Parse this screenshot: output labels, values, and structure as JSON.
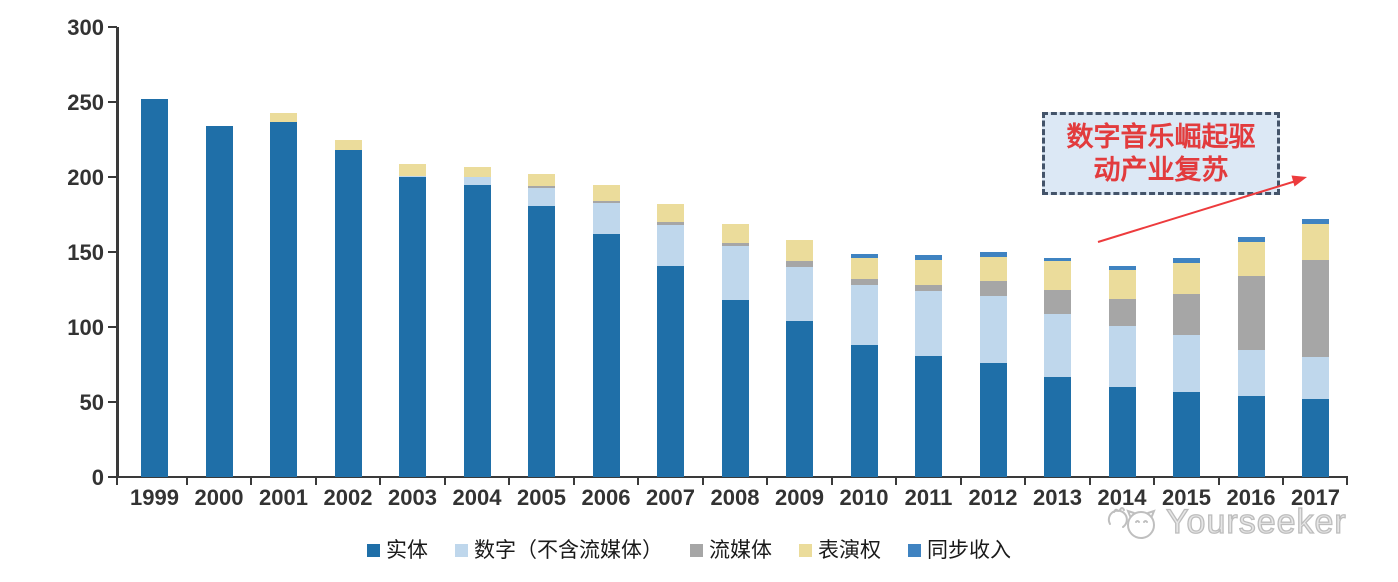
{
  "colors": {
    "axis": "#3a3a3a",
    "tick_label": "#333333",
    "annotation_fill": "#DCE8F5",
    "annotation_border": "#44546A",
    "annotation_text": "#E23B3D",
    "arrow": "#ED3B3D",
    "watermark": "#BDBDBD"
  },
  "chart_data": {
    "type": "bar",
    "stacked": true,
    "title": "",
    "xlabel": "",
    "ylabel": "",
    "ylim": [
      0,
      300
    ],
    "y_ticks": [
      0,
      50,
      100,
      150,
      200,
      250,
      300
    ],
    "grid": false,
    "legend_position": "bottom",
    "categories": [
      "1999",
      "2000",
      "2001",
      "2002",
      "2003",
      "2004",
      "2005",
      "2006",
      "2007",
      "2008",
      "2009",
      "2010",
      "2011",
      "2012",
      "2013",
      "2014",
      "2015",
      "2016",
      "2017"
    ],
    "series": [
      {
        "name": "实体",
        "color": "#1F6FA8",
        "values": [
          252,
          234,
          237,
          218,
          200,
          195,
          181,
          162,
          141,
          118,
          104,
          88,
          81,
          76,
          67,
          60,
          57,
          54,
          52
        ]
      },
      {
        "name": "数字（不含流媒体）",
        "color": "#BFD7EC",
        "values": [
          0,
          0,
          0,
          0,
          1,
          5,
          12,
          21,
          27,
          36,
          36,
          40,
          43,
          45,
          42,
          41,
          38,
          31,
          28
        ]
      },
      {
        "name": "流媒体",
        "color": "#A6A6A6",
        "values": [
          0,
          0,
          0,
          0,
          0,
          0,
          1,
          1,
          2,
          2,
          4,
          4,
          4,
          10,
          16,
          18,
          27,
          49,
          65
        ]
      },
      {
        "name": "表演权",
        "color": "#EBDC9B",
        "values": [
          0,
          0,
          6,
          7,
          8,
          7,
          8,
          11,
          12,
          13,
          14,
          14,
          17,
          16,
          19,
          19,
          21,
          23,
          24
        ]
      },
      {
        "name": "同步收入",
        "color": "#3F83C1",
        "values": [
          0,
          0,
          0,
          0,
          0,
          0,
          0,
          0,
          0,
          0,
          0,
          3,
          3,
          3,
          2,
          3,
          3,
          3,
          3
        ]
      }
    ]
  },
  "annotation": {
    "text_line1": "数字音乐崛起驱",
    "text_line2": "动产业复苏"
  },
  "watermark": {
    "brand": "Yourseeker"
  }
}
